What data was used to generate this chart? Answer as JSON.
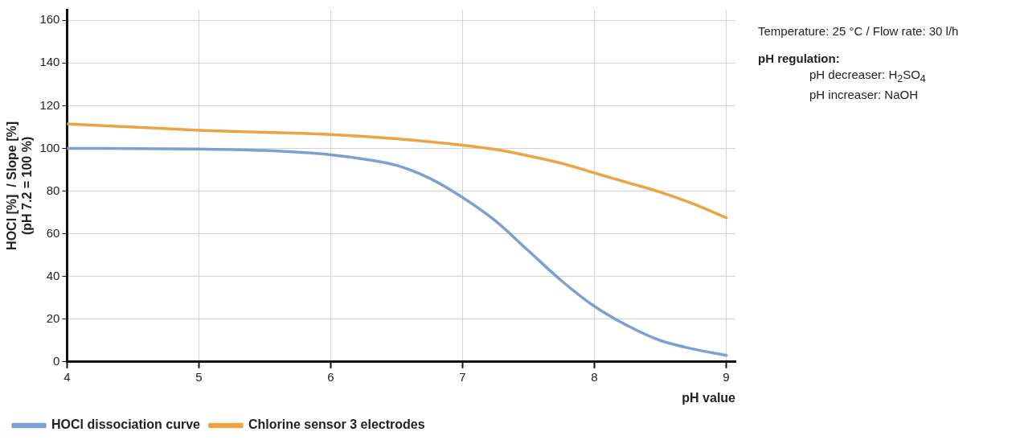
{
  "chart_data": {
    "type": "line",
    "xlabel": "pH value",
    "ylabel": "HOCl [%]  / Slope [%]\n(pH 7.2 = 100 %)",
    "annotations": [
      "Temperature: 25 °C / Flow rate: 30 l/h",
      "pH regulation:",
      "pH decreaser: H$_{2}$SO$_{4}$",
      "pH increaser: NaOH"
    ],
    "xlim": [
      4,
      9.07
    ],
    "xticks": [
      4,
      5,
      6,
      7,
      8,
      9
    ],
    "ylim": [
      0,
      165
    ],
    "yticks": [
      0,
      20,
      40,
      60,
      80,
      100,
      120,
      140,
      160
    ],
    "grid": true,
    "legend": "bottom",
    "marker": "none",
    "line_style": "solid",
    "series": [
      {
        "name": "HOCl dissociation curve",
        "color": "#7da0d2",
        "x": [
          4,
          4.5,
          5,
          5.5,
          6,
          6.25,
          6.5,
          6.75,
          7,
          7.25,
          7.5,
          7.75,
          8,
          8.25,
          8.5,
          8.75,
          9
        ],
        "values": [
          100,
          99.9,
          99.7,
          99,
          97,
          95,
          92,
          86,
          77,
          66,
          52,
          38,
          26,
          17,
          10,
          6,
          3
        ]
      },
      {
        "name": "Chlorine sensor 3 electrodes",
        "color": "#eaa443",
        "x": [
          4,
          4.5,
          5,
          5.5,
          6,
          6.5,
          7,
          7.25,
          7.5,
          7.75,
          8,
          8.25,
          8.5,
          8.75,
          9
        ],
        "values": [
          111.5,
          110,
          108.5,
          107.5,
          106.5,
          104.5,
          101.5,
          99.5,
          96.5,
          93,
          88.5,
          84,
          79.5,
          74,
          67.5
        ]
      }
    ]
  }
}
